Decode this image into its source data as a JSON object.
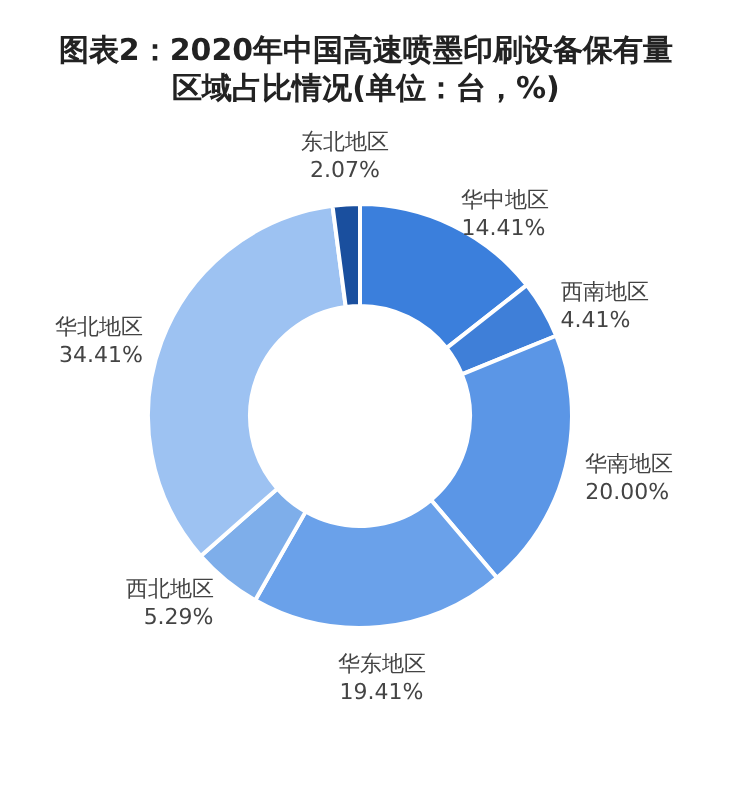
{
  "chart_data": {
    "type": "donut",
    "title": "图表2：2020年中国高速喷墨印刷设备保有量区域占比情况(单位：台，%)",
    "categories": [
      "华中地区",
      "西南地区",
      "华南地区",
      "华东地区",
      "西北地区",
      "华北地区",
      "东北地区"
    ],
    "values": [
      14.41,
      4.41,
      20.0,
      19.41,
      5.29,
      34.41,
      2.07
    ],
    "value_labels": [
      "14.41%",
      "4.41%",
      "20.00%",
      "19.41%",
      "5.29%",
      "34.41%",
      "2.07%"
    ],
    "colors": [
      "#3b7fdc",
      "#3f7fd8",
      "#5b96e6",
      "#6aa1ea",
      "#7eaeea",
      "#9dc2f2",
      "#1a4f9e"
    ]
  }
}
